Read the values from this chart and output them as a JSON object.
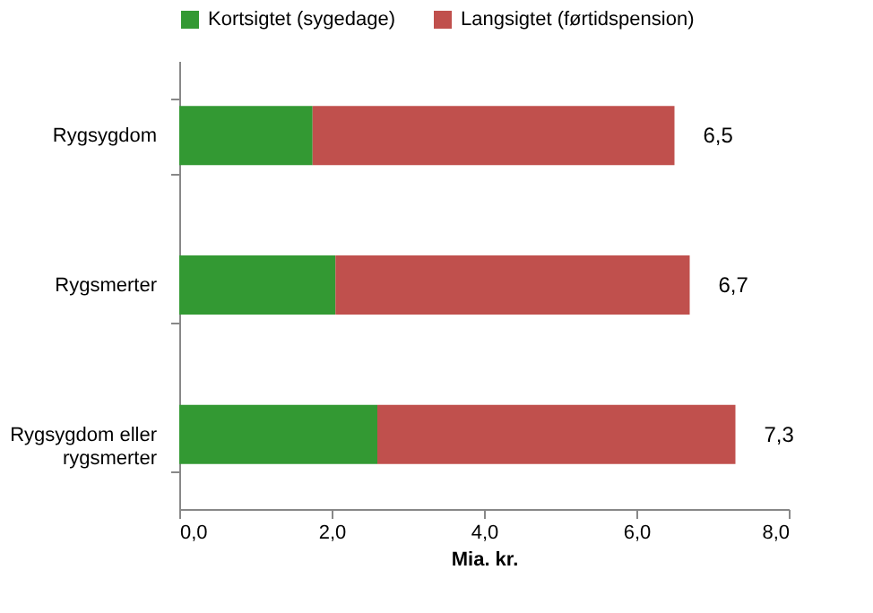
{
  "chart_data": {
    "type": "bar",
    "orientation": "horizontal",
    "stacked": true,
    "xlabel": "Mia. kr.",
    "categories": [
      "Rygsygdom",
      "Rygsmerter",
      "Rygsygdom eller rygsmerter"
    ],
    "series": [
      {
        "name": "Kortsigtet (sygedage)",
        "color": "#339933",
        "values": [
          1.75,
          2.05,
          2.6
        ]
      },
      {
        "name": "Langsigtet (førtidspension)",
        "color": "#c0504d",
        "values": [
          4.75,
          4.65,
          4.7
        ]
      }
    ],
    "totals": [
      "6,5",
      "6,7",
      "7,3"
    ],
    "xlim": [
      0,
      8
    ],
    "xticks": [
      {
        "value": 0,
        "label": "0,0"
      },
      {
        "value": 2,
        "label": "2,0"
      },
      {
        "value": 4,
        "label": "4,0"
      },
      {
        "value": 6,
        "label": "6,0"
      },
      {
        "value": 8,
        "label": "8,0"
      }
    ],
    "grid": false,
    "legend": "top"
  }
}
